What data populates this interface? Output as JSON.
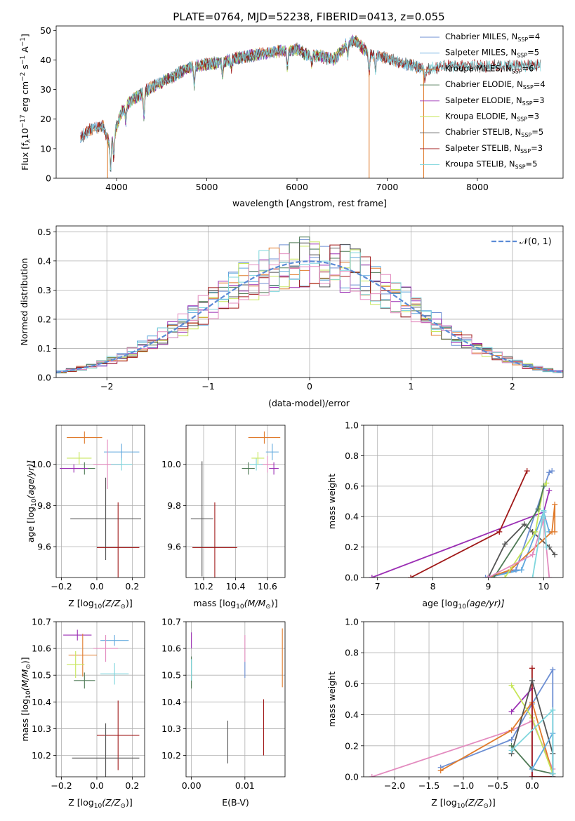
{
  "figure_title": "PLATE=0764, MJD=52238, FIBERID=0413, z=0.055",
  "colors": {
    "Chabrier MILES": "#6d8fd3",
    "Salpeter MILES": "#60a9de",
    "Kroupa MILES": "#e07b2c",
    "Chabrier ELODIE": "#4f7a56",
    "Salpeter ELODIE": "#9b2fb4",
    "Kroupa ELODIE": "#c7e65a",
    "Chabrier STELIB": "#545454",
    "Salpeter STELIB": "#a01818",
    "Kroupa STELIB": "#7fd6dd",
    "pink": "#e38bbf",
    "gauss": "#5b8bd6"
  },
  "chart_data": [
    {
      "type": "line",
      "title": "PLATE=0764, MJD=52238, FIBERID=0413, z=0.055",
      "xlabel": "wavelength [Angstrom, rest frame]",
      "ylabel_parts": [
        "Flux [f",
        "λ",
        "10",
        "−17",
        " erg cm",
        "−2",
        " s",
        "−1",
        " A",
        "−1",
        "]"
      ],
      "xlim": [
        3330,
        8950
      ],
      "ylim": [
        0,
        51.5
      ],
      "xticks": [
        4000,
        5000,
        6000,
        7000,
        8000
      ],
      "xtick_labels": [
        "4000",
        "5000",
        "6000",
        "7000",
        "8000"
      ],
      "yticks": [
        0,
        10,
        20,
        30,
        40,
        50
      ],
      "ytick_labels": [
        "0",
        "10",
        "20",
        "30",
        "40",
        "50"
      ],
      "grid": false,
      "legend_position": "top-right",
      "continuum_anchors_x": [
        3600,
        3700,
        3850,
        3920,
        3960,
        4050,
        4150,
        4300,
        4400,
        4600,
        4800,
        5000,
        5200,
        5400,
        5600,
        5800,
        6000,
        6100,
        6200,
        6300,
        6400,
        6500,
        6560,
        6650,
        6700,
        6800,
        6900,
        7000,
        7100,
        7200,
        7300,
        7400,
        7500,
        7600
      ],
      "continuum_anchors_y": [
        13.5,
        16.5,
        17.5,
        12,
        14,
        22,
        26,
        29,
        31,
        34,
        37.5,
        38.5,
        39.5,
        41,
        42,
        43,
        43.5,
        42,
        41.5,
        41,
        40,
        43,
        46,
        46.5,
        45,
        42,
        41.5,
        40.5,
        39.5,
        38.5,
        38,
        37,
        37,
        38
      ],
      "dips_x": [
        3934,
        3969,
        4102,
        4304,
        4861,
        5175,
        5270,
        5893,
        6165,
        6563,
        6800,
        6870,
        7420
      ],
      "dips_depth": [
        10,
        8,
        5,
        8,
        6,
        5,
        3,
        6,
        3,
        4,
        6,
        5,
        4
      ],
      "series": [
        {
          "name": "Chabrier MILES",
          "nssp": "4",
          "x_range": [
            3600,
            7400
          ]
        },
        {
          "name": "Salpeter MILES",
          "nssp": "5",
          "x_range": [
            3600,
            7400
          ]
        },
        {
          "name": "Kroupa MILES",
          "nssp": "6",
          "x_range": [
            3600,
            7400
          ]
        },
        {
          "name": "Chabrier ELODIE",
          "nssp": "4",
          "x_range": [
            3900,
            6800
          ]
        },
        {
          "name": "Salpeter ELODIE",
          "nssp": "3",
          "x_range": [
            3900,
            6800
          ]
        },
        {
          "name": "Kroupa ELODIE",
          "nssp": "3",
          "x_range": [
            3900,
            6800
          ]
        },
        {
          "name": "Chabrier STELIB",
          "nssp": "5",
          "x_range": [
            3600,
            8700
          ]
        },
        {
          "name": "Salpeter STELIB",
          "nssp": "3",
          "x_range": [
            3600,
            8700
          ]
        },
        {
          "name": "Kroupa STELIB",
          "nssp": "5",
          "x_range": [
            3600,
            8700
          ]
        }
      ],
      "drop_lines": [
        {
          "x": 3900,
          "color_key": "Kroupa MILES"
        },
        {
          "x": 6800,
          "color_key": "Kroupa MILES"
        },
        {
          "x": 7405,
          "color_key": "Kroupa MILES"
        }
      ]
    },
    {
      "type": "step",
      "xlabel": "(data-model)/error",
      "ylabel": "Normed distribution",
      "xlim": [
        -2.5,
        2.5
      ],
      "ylim": [
        0,
        0.52
      ],
      "xticks": [
        -2,
        -1,
        0,
        1,
        2
      ],
      "xtick_labels": [
        "−2",
        "−1",
        "0",
        "1",
        "2"
      ],
      "yticks": [
        0,
        0.1,
        0.2,
        0.3,
        0.4,
        0.5
      ],
      "ytick_labels": [
        "0.0",
        "0.1",
        "0.2",
        "0.3",
        "0.4",
        "0.5"
      ],
      "grid": true,
      "legend_position": "top-right",
      "legend_label": "𝒩(0, 1)",
      "bin_width": 0.1,
      "bin_start": -2.5,
      "gauss_mean": 0,
      "gauss_sigma": 1
    },
    {
      "type": "errorbar",
      "xlabel_parts": [
        "Z [log",
        "10",
        "(Z/Z",
        "⊙",
        ")]"
      ],
      "ylabel_parts": [
        "age  [log",
        "10",
        "(age/yr)]"
      ],
      "xlim": [
        -0.23,
        0.27
      ],
      "ylim": [
        9.45,
        10.19
      ],
      "xticks": [
        -0.2,
        0,
        0.2
      ],
      "xtick_labels": [
        "−0.2",
        "0.0",
        "0.2"
      ],
      "yticks": [
        9.6,
        9.8,
        10.0
      ],
      "ytick_labels": [
        "9.6",
        "9.8",
        "10.0"
      ],
      "grid": true,
      "points": [
        {
          "color_key": "Kroupa MILES",
          "x": -0.07,
          "xerr": 0.1,
          "y": 10.13,
          "yerr": 0.03
        },
        {
          "color_key": "Salpeter MILES",
          "x": 0.14,
          "xerr": 0.1,
          "y": 10.06,
          "yerr": 0.04
        },
        {
          "color_key": "pink",
          "x": 0.06,
          "xerr": 0.08,
          "y": 10.0,
          "yerr": 0.12
        },
        {
          "color_key": "Kroupa STELIB",
          "x": 0.14,
          "xerr": 0.06,
          "y": 10.0,
          "yerr": 0.03
        },
        {
          "color_key": "Kroupa ELODIE",
          "x": -0.1,
          "xerr": 0.07,
          "y": 10.03,
          "yerr": 0.03
        },
        {
          "color_key": "Chabrier ELODIE",
          "x": -0.07,
          "xerr": 0.06,
          "y": 9.98,
          "yerr": 0.03
        },
        {
          "color_key": "Salpeter ELODIE",
          "x": -0.13,
          "xerr": 0.08,
          "y": 9.98,
          "yerr": 0.02
        },
        {
          "color_key": "Chabrier STELIB",
          "x": 0.05,
          "xerr": 0.2,
          "y": 9.735,
          "yerr": 0.2
        },
        {
          "color_key": "Salpeter STELIB",
          "x": 0.12,
          "xerr": 0.12,
          "y": 9.595,
          "yerr": 0.22
        }
      ]
    },
    {
      "type": "errorbar",
      "xlabel_parts": [
        "mass [log",
        "10",
        "(M/M",
        "⊙",
        ")]"
      ],
      "xlim": [
        10.09,
        10.71
      ],
      "ylim": [
        9.45,
        10.19
      ],
      "xticks": [
        10.2,
        10.4,
        10.6
      ],
      "xtick_labels": [
        "10.2",
        "10.4",
        "10.6"
      ],
      "yticks": [
        9.6,
        9.8,
        10.0
      ],
      "ytick_labels": [
        "9.6",
        "9.8",
        "10.0"
      ],
      "grid": true,
      "points": [
        {
          "color_key": "Kroupa MILES",
          "x": 10.58,
          "xerr": 0.1,
          "y": 10.13,
          "yerr": 0.03
        },
        {
          "color_key": "Salpeter MILES",
          "x": 10.63,
          "xerr": 0.04,
          "y": 10.06,
          "yerr": 0.04
        },
        {
          "color_key": "pink",
          "x": 10.6,
          "xerr": 0.04,
          "y": 10.0,
          "yerr": 0.04
        },
        {
          "color_key": "Kroupa STELIB",
          "x": 10.53,
          "xerr": 0.04,
          "y": 10.0,
          "yerr": 0.03
        },
        {
          "color_key": "Kroupa ELODIE",
          "x": 10.54,
          "xerr": 0.04,
          "y": 10.03,
          "yerr": 0.03
        },
        {
          "color_key": "Chabrier ELODIE",
          "x": 10.48,
          "xerr": 0.04,
          "y": 9.98,
          "yerr": 0.03
        },
        {
          "color_key": "Salpeter ELODIE",
          "x": 10.64,
          "xerr": 0.03,
          "y": 9.98,
          "yerr": 0.03
        },
        {
          "color_key": "Chabrier STELIB",
          "x": 10.19,
          "xerr": 0.07,
          "y": 9.735,
          "yerr": 0.28
        },
        {
          "color_key": "Salpeter STELIB",
          "x": 10.27,
          "xerr": 0.14,
          "y": 9.595,
          "yerr": 0.22
        }
      ]
    },
    {
      "type": "line",
      "xlabel_parts": [
        "age  [log",
        "10",
        "(age/yr)]"
      ],
      "ylabel": "mass weight",
      "xlim": [
        6.75,
        10.35
      ],
      "ylim": [
        0,
        1
      ],
      "xticks": [
        7,
        8,
        9,
        10
      ],
      "xtick_labels": [
        "7",
        "8",
        "9",
        "10"
      ],
      "yticks": [
        0,
        0.2,
        0.4,
        0.6,
        0.8,
        1.0
      ],
      "ytick_labels": [
        "0.0",
        "0.2",
        "0.4",
        "0.6",
        "0.8",
        "1.0"
      ],
      "grid": true,
      "series": [
        {
          "color_key": "Salpeter ELODIE",
          "x": [
            6.9,
            10.0,
            10.1
          ],
          "y": [
            0.0,
            0.43,
            0.57
          ]
        },
        {
          "color_key": "Salpeter STELIB",
          "x": [
            7.6,
            9.2,
            9.7
          ],
          "y": [
            0.0,
            0.3,
            0.7
          ]
        },
        {
          "color_key": "Chabrier STELIB",
          "x": [
            9.0,
            9.3,
            9.65,
            9.8,
            10.1,
            10.2
          ],
          "y": [
            0.0,
            0.22,
            0.35,
            0.3,
            0.2,
            0.15
          ]
        },
        {
          "color_key": "Chabrier MILES",
          "x": [
            8.95,
            9.5,
            10.1,
            10.15
          ],
          "y": [
            0.0,
            0.05,
            0.69,
            0.7
          ]
        },
        {
          "color_key": "Salpeter MILES",
          "x": [
            9.0,
            9.6,
            10.0,
            10.1
          ],
          "y": [
            0.0,
            0.05,
            0.43,
            0.3
          ]
        },
        {
          "color_key": "Kroupa MILES",
          "x": [
            9.0,
            9.4,
            10.15,
            10.2,
            10.2
          ],
          "y": [
            0.0,
            0.05,
            0.3,
            0.48,
            0.3
          ]
        },
        {
          "color_key": "Kroupa ELODIE",
          "x": [
            9.3,
            9.85,
            10.0,
            10.05
          ],
          "y": [
            0.0,
            0.3,
            0.6,
            0.62
          ]
        },
        {
          "color_key": "Chabrier ELODIE",
          "x": [
            9.1,
            9.9,
            10.0
          ],
          "y": [
            0.0,
            0.45,
            0.6
          ]
        },
        {
          "color_key": "pink",
          "x": [
            9.0,
            9.8,
            10.0,
            10.1
          ],
          "y": [
            0.0,
            0.15,
            0.38,
            0.0
          ]
        },
        {
          "color_key": "Kroupa STELIB",
          "x": [
            9.8,
            10.0,
            10.05
          ],
          "y": [
            0.0,
            0.44,
            0.2
          ]
        }
      ]
    },
    {
      "type": "errorbar",
      "xlabel_parts": [
        "Z [log",
        "10",
        "(Z/Z",
        "⊙",
        ")]"
      ],
      "ylabel_parts": [
        "mass [log",
        "10",
        "(M/M",
        "⊙",
        ")]"
      ],
      "xlim": [
        -0.23,
        0.27
      ],
      "ylim": [
        10.12,
        10.7
      ],
      "xticks": [
        -0.2,
        0,
        0.2
      ],
      "xtick_labels": [
        "−0.2",
        "0.0",
        "0.2"
      ],
      "yticks": [
        10.2,
        10.3,
        10.4,
        10.5,
        10.6,
        10.7
      ],
      "ytick_labels": [
        "10.2",
        "10.3",
        "10.4",
        "10.5",
        "10.6",
        "10.7"
      ],
      "grid": true,
      "points": [
        {
          "color_key": "Salpeter ELODIE",
          "x": -0.11,
          "xerr": 0.08,
          "y": 10.65,
          "yerr": 0.02
        },
        {
          "color_key": "Salpeter MILES",
          "x": 0.1,
          "xerr": 0.08,
          "y": 10.63,
          "yerr": 0.02
        },
        {
          "color_key": "pink",
          "x": 0.05,
          "xerr": 0.07,
          "y": 10.6,
          "yerr": 0.05
        },
        {
          "color_key": "Kroupa MILES",
          "x": -0.08,
          "xerr": 0.08,
          "y": 10.575,
          "yerr": 0.08
        },
        {
          "color_key": "Kroupa ELODIE",
          "x": -0.12,
          "xerr": 0.05,
          "y": 10.54,
          "yerr": 0.05
        },
        {
          "color_key": "Kroupa STELIB",
          "x": 0.1,
          "xerr": 0.08,
          "y": 10.505,
          "yerr": 0.04
        },
        {
          "color_key": "Chabrier ELODIE",
          "x": -0.07,
          "xerr": 0.06,
          "y": 10.48,
          "yerr": 0.03
        },
        {
          "color_key": "Salpeter STELIB",
          "x": 0.12,
          "xerr": 0.12,
          "y": 10.275,
          "yerr": 0.13
        },
        {
          "color_key": "Chabrier STELIB",
          "x": 0.05,
          "xerr": 0.19,
          "y": 10.19,
          "yerr": 0.13
        }
      ]
    },
    {
      "type": "errorbar",
      "xlabel": "E(B-V)",
      "xlim": [
        -0.001,
        0.0175
      ],
      "ylim": [
        10.12,
        10.7
      ],
      "xticks": [
        0,
        0.01
      ],
      "xtick_labels": [
        "0.00",
        "0.01"
      ],
      "yticks": [
        10.2,
        10.3,
        10.4,
        10.5,
        10.6,
        10.7
      ],
      "ytick_labels": [
        "10.2",
        "10.3",
        "10.4",
        "10.5",
        "10.6",
        "10.7"
      ],
      "grid": true,
      "points": [
        {
          "color_key": "Salpeter ELODIE",
          "x": 0.0,
          "xerr": 0,
          "y": 10.63,
          "yerr": 0.03
        },
        {
          "color_key": "Chabrier ELODIE",
          "x": 0.0,
          "xerr": 0,
          "y": 10.51,
          "yerr": 0.06
        },
        {
          "color_key": "Kroupa STELIB",
          "x": 0.0,
          "xerr": 0,
          "y": 10.52,
          "yerr": 0.04
        },
        {
          "color_key": "pink",
          "x": 0.01,
          "xerr": 0,
          "y": 10.6,
          "yerr": 0.05
        },
        {
          "color_key": "Chabrier MILES",
          "x": 0.01,
          "xerr": 0,
          "y": 10.52,
          "yerr": 0.03
        },
        {
          "color_key": "Kroupa MILES",
          "x": 0.017,
          "xerr": 0,
          "y": 10.565,
          "yerr": 0.11
        },
        {
          "color_key": "Chabrier STELIB",
          "x": 0.0068,
          "xerr": 0,
          "y": 10.25,
          "yerr": 0.08
        },
        {
          "color_key": "Salpeter STELIB",
          "x": 0.0135,
          "xerr": 0,
          "y": 10.305,
          "yerr": 0.105
        }
      ]
    },
    {
      "type": "line",
      "xlabel_parts": [
        "Z [log",
        "10",
        "(Z/Z",
        "⊙",
        ")]"
      ],
      "ylabel": "mass weight",
      "xlim": [
        -2.45,
        0.45
      ],
      "ylim": [
        0,
        1
      ],
      "xticks": [
        -2.0,
        -1.5,
        -1.0,
        -0.5,
        0.0
      ],
      "xtick_labels": [
        "−2.0",
        "−1.5",
        "−1.0",
        "−0.5",
        "0.0"
      ],
      "yticks": [
        0,
        0.2,
        0.4,
        0.6,
        0.8,
        1.0
      ],
      "ytick_labels": [
        "0.0",
        "0.2",
        "0.4",
        "0.6",
        "0.8",
        "1.0"
      ],
      "grid": true,
      "series": [
        {
          "color_key": "pink",
          "x": [
            -2.33,
            -0.3,
            0.0,
            0.3
          ],
          "y": [
            0.0,
            0.3,
            0.36,
            0.05
          ]
        },
        {
          "color_key": "Chabrier MILES",
          "x": [
            -1.33,
            -0.3,
            0.0,
            0.3,
            0.3
          ],
          "y": [
            0.06,
            0.24,
            0.47,
            0.69,
            0.0
          ]
        },
        {
          "color_key": "Kroupa MILES",
          "x": [
            -1.33,
            -0.3,
            0.0,
            0.3
          ],
          "y": [
            0.04,
            0.3,
            0.48,
            0.02
          ]
        },
        {
          "color_key": "Salpeter ELODIE",
          "x": [
            -0.3,
            0.0,
            0.0
          ],
          "y": [
            0.42,
            0.57,
            0.0
          ]
        },
        {
          "color_key": "Kroupa ELODIE",
          "x": [
            -0.3,
            0.0,
            0.3
          ],
          "y": [
            0.59,
            0.38,
            0.02
          ]
        },
        {
          "color_key": "Salpeter STELIB",
          "x": [
            0.0,
            0.0,
            0.3
          ],
          "y": [
            0.7,
            0.0,
            0.0
          ]
        },
        {
          "color_key": "Chabrier STELIB",
          "x": [
            -0.3,
            0.0,
            0.3,
            0.3
          ],
          "y": [
            0.15,
            0.62,
            0.15,
            0.0
          ]
        },
        {
          "color_key": "Chabrier ELODIE",
          "x": [
            -0.3,
            0.0,
            0.3
          ],
          "y": [
            0.2,
            0.05,
            0.02
          ]
        },
        {
          "color_key": "Salpeter MILES",
          "x": [
            0.0,
            0.3,
            0.3
          ],
          "y": [
            0.05,
            0.28,
            0.02
          ]
        },
        {
          "color_key": "Kroupa STELIB",
          "x": [
            -0.3,
            0.3,
            0.3
          ],
          "y": [
            0.17,
            0.43,
            0.02
          ]
        }
      ]
    }
  ]
}
